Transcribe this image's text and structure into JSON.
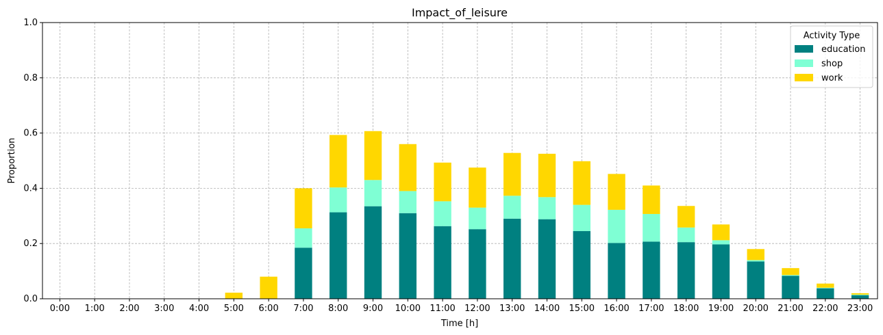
{
  "chart_data": {
    "type": "bar",
    "stacked": true,
    "title": "Impact_of_leisure",
    "xlabel": "Time [h]",
    "ylabel": "Proportion",
    "ylim": [
      0,
      1.0
    ],
    "yticks": [
      0.0,
      0.2,
      0.4,
      0.6,
      0.8,
      1.0
    ],
    "ytick_labels": [
      "0.0",
      "0.2",
      "0.4",
      "0.6",
      "0.8",
      "1.0"
    ],
    "grid": true,
    "legend": {
      "title": "Activity Type",
      "placement": "top-right"
    },
    "categories": [
      "0:00",
      "1:00",
      "2:00",
      "3:00",
      "4:00",
      "5:00",
      "6:00",
      "7:00",
      "8:00",
      "9:00",
      "10:00",
      "11:00",
      "12:00",
      "13:00",
      "14:00",
      "15:00",
      "16:00",
      "17:00",
      "18:00",
      "19:00",
      "20:00",
      "21:00",
      "22:00",
      "23:00"
    ],
    "series": [
      {
        "name": "education",
        "color": "#008080",
        "values": [
          0,
          0,
          0,
          0,
          0,
          0,
          0,
          0.185,
          0.313,
          0.335,
          0.31,
          0.263,
          0.252,
          0.29,
          0.288,
          0.245,
          0.202,
          0.207,
          0.205,
          0.197,
          0.135,
          0.083,
          0.038,
          0.013
        ]
      },
      {
        "name": "shop",
        "color": "#7fffd4",
        "values": [
          0,
          0,
          0,
          0,
          0,
          0,
          0,
          0.07,
          0.09,
          0.095,
          0.08,
          0.09,
          0.078,
          0.083,
          0.08,
          0.095,
          0.12,
          0.1,
          0.053,
          0.015,
          0.005,
          0.003,
          0.002,
          0.002
        ]
      },
      {
        "name": "work",
        "color": "#ffd700",
        "values": [
          0,
          0,
          0,
          0,
          0,
          0.022,
          0.08,
          0.145,
          0.19,
          0.177,
          0.17,
          0.14,
          0.145,
          0.155,
          0.157,
          0.158,
          0.13,
          0.103,
          0.078,
          0.057,
          0.04,
          0.025,
          0.015,
          0.005
        ]
      }
    ]
  }
}
